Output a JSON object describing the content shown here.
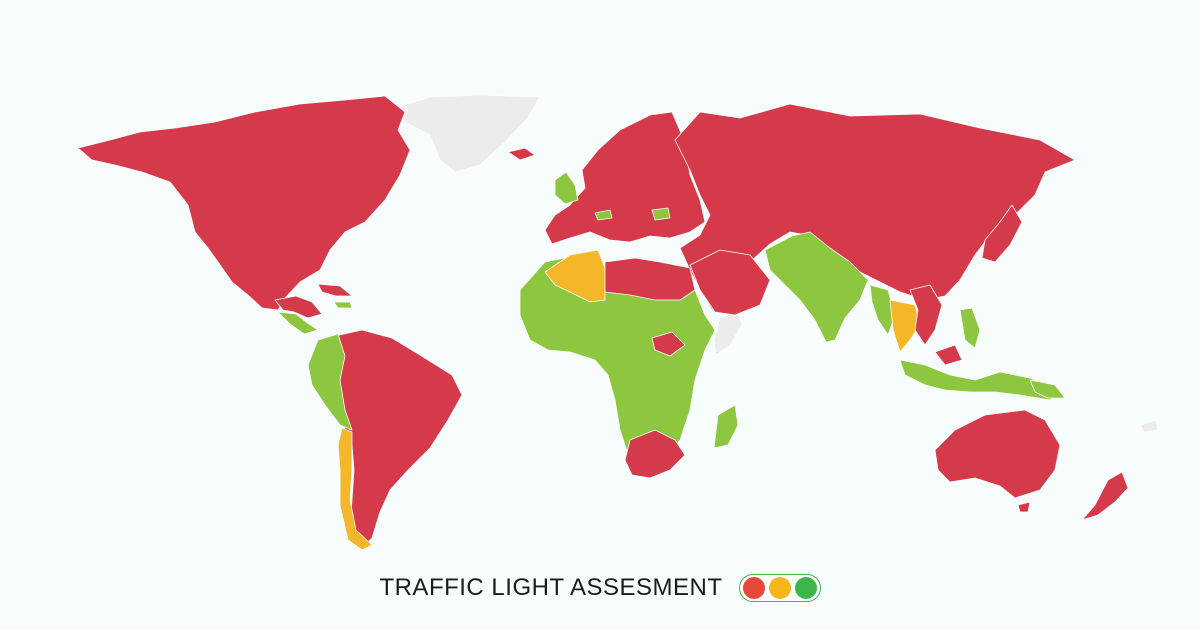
{
  "legend": {
    "title": "TRAFFIC LIGHT ASSESMENT",
    "lights": [
      {
        "name": "red",
        "color": "#e8483a"
      },
      {
        "name": "amber",
        "color": "#f5b51b"
      },
      {
        "name": "green",
        "color": "#3cb54a"
      }
    ]
  },
  "status_colors": {
    "red": "#d43a4a",
    "amber": "#f4b72a",
    "green": "#8dc63f",
    "no_data": "#ececec"
  }
}
